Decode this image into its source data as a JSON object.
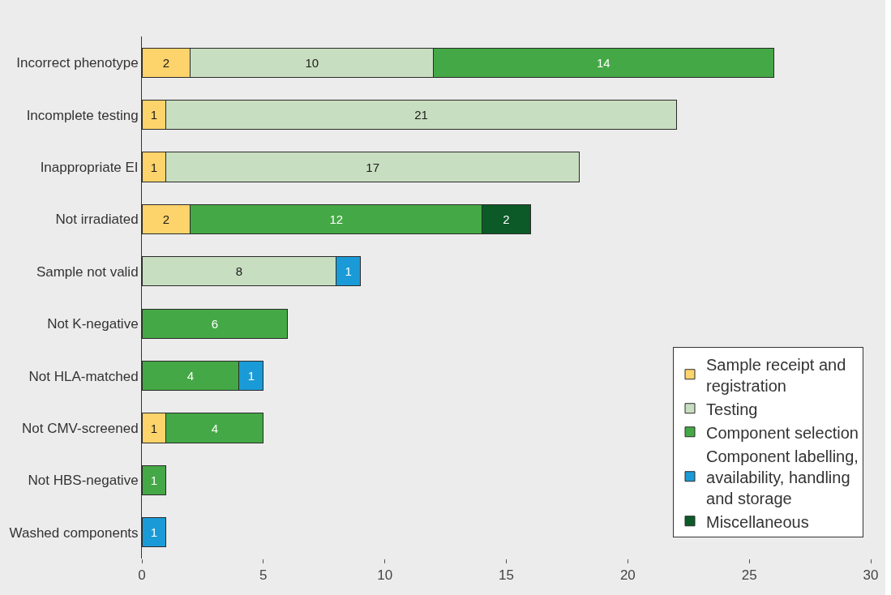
{
  "chart_data": {
    "type": "bar",
    "orientation": "horizontal",
    "stacked": true,
    "categories": [
      "Incorrect phenotype",
      "Incomplete testing",
      "Inappropriate EI",
      "Not irradiated",
      "Sample not valid",
      "Not K-negative",
      "Not HLA-matched",
      "Not CMV-screened",
      "Not HBS-negative",
      "Washed components"
    ],
    "series": [
      {
        "name": "Sample receipt and registration",
        "color": "#fdd36b",
        "values": [
          2,
          1,
          1,
          2,
          null,
          null,
          null,
          1,
          null,
          null
        ]
      },
      {
        "name": "Testing",
        "color": "#c8dec0",
        "values": [
          10,
          21,
          17,
          null,
          8,
          null,
          null,
          null,
          null,
          null
        ]
      },
      {
        "name": "Component selection",
        "color": "#45a846",
        "values": [
          14,
          null,
          null,
          12,
          null,
          6,
          4,
          4,
          1,
          null
        ]
      },
      {
        "name": "Component labelling, availability, handling and storage",
        "color": "#1a9bd7",
        "values": [
          null,
          null,
          null,
          null,
          1,
          null,
          1,
          null,
          null,
          1
        ]
      },
      {
        "name": "Miscellaneous",
        "color": "#0b5a27",
        "values": [
          null,
          null,
          null,
          2,
          null,
          null,
          null,
          null,
          null,
          null
        ]
      }
    ],
    "xlim": [
      0,
      30
    ],
    "xticks": [
      0,
      5,
      10,
      15,
      20,
      25,
      30
    ],
    "data_labels": true,
    "grid": false,
    "legend": "bottom right"
  }
}
